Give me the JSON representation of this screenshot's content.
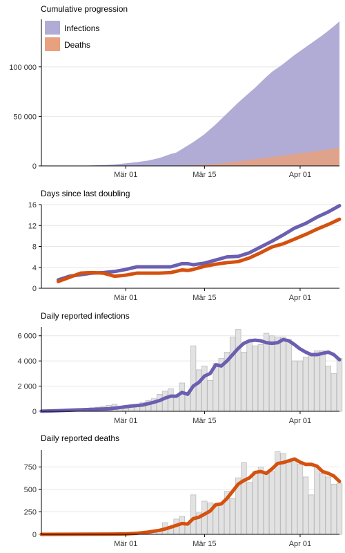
{
  "colors": {
    "infections": "#6a5fb0",
    "deaths": "#d4510f",
    "infections_fill": "#b0acd6",
    "deaths_fill": "#e8a07e",
    "bar_fill": "#e2e2e2",
    "bar_stroke": "#bdbdbd"
  },
  "x_ticks": [
    {
      "day": 22,
      "label": "Mär 01"
    },
    {
      "day": 36,
      "label": "Mär 15"
    },
    {
      "day": 53,
      "label": "Apr 01"
    }
  ],
  "x_range": [
    7,
    60
  ],
  "chart_data": [
    {
      "type": "area",
      "title": "Cumulative progression",
      "legend": [
        "Infections",
        "Deaths"
      ],
      "legend_position": "top-left",
      "ylim": [
        0,
        148000
      ],
      "yticks": [
        0,
        50000,
        100000
      ],
      "ytick_labels": [
        "0",
        "50 000",
        "100 000"
      ],
      "series": [
        {
          "name": "Infections",
          "x": [
            7,
            12,
            15,
            18,
            20,
            22,
            24,
            26,
            28,
            29,
            30,
            31,
            32,
            33,
            34,
            35,
            36,
            37,
            38,
            39,
            40,
            41,
            42,
            43,
            44,
            45,
            46,
            47,
            48,
            49,
            50,
            51,
            52,
            53,
            54,
            55,
            56,
            57,
            58,
            59,
            60
          ],
          "values": [
            0,
            50,
            300,
            800,
            1500,
            2600,
            3800,
            5400,
            8000,
            10000,
            12000,
            13500,
            17000,
            20500,
            24000,
            28000,
            32000,
            37000,
            42000,
            47500,
            53000,
            58500,
            64000,
            69000,
            74000,
            79000,
            84500,
            90000,
            95000,
            99000,
            103000,
            107500,
            112000,
            116000,
            120000,
            124000,
            128000,
            132000,
            136500,
            141000,
            146000
          ]
        },
        {
          "name": "Deaths",
          "x": [
            7,
            25,
            28,
            30,
            32,
            34,
            36,
            38,
            40,
            42,
            44,
            46,
            48,
            50,
            52,
            54,
            56,
            58,
            60
          ],
          "values": [
            0,
            0,
            100,
            200,
            400,
            700,
            1200,
            2000,
            3200,
            4500,
            6000,
            7500,
            9000,
            10500,
            12000,
            13500,
            15000,
            16700,
            18500
          ]
        }
      ]
    },
    {
      "type": "line",
      "title": "Days since last doubling",
      "ylim": [
        0,
        16
      ],
      "yticks": [
        0,
        4,
        8,
        12,
        16
      ],
      "series": [
        {
          "name": "Infections",
          "x": [
            10,
            12,
            14,
            16,
            18,
            20,
            22,
            24,
            26,
            28,
            30,
            32,
            33,
            34,
            36,
            38,
            40,
            42,
            44,
            46,
            48,
            50,
            52,
            54,
            56,
            58,
            60
          ],
          "values": [
            1.6,
            2.3,
            2.6,
            2.9,
            3.0,
            3.2,
            3.6,
            4.1,
            4.1,
            4.1,
            4.1,
            4.7,
            4.7,
            4.5,
            4.8,
            5.4,
            6.0,
            6.1,
            6.8,
            7.9,
            9.0,
            10.2,
            11.5,
            12.4,
            13.6,
            14.6,
            15.8
          ]
        },
        {
          "name": "Deaths",
          "x": [
            10,
            12,
            14,
            16,
            18,
            20,
            22,
            24,
            26,
            28,
            30,
            32,
            33,
            34,
            36,
            38,
            40,
            42,
            44,
            46,
            48,
            50,
            52,
            54,
            56,
            58,
            60
          ],
          "values": [
            1.3,
            2.1,
            2.9,
            3.0,
            2.9,
            2.3,
            2.5,
            2.9,
            2.9,
            2.9,
            3.0,
            3.5,
            3.4,
            3.6,
            4.2,
            4.6,
            4.9,
            5.1,
            5.8,
            6.8,
            7.9,
            8.5,
            9.4,
            10.3,
            11.3,
            12.2,
            13.2
          ]
        }
      ]
    },
    {
      "type": "bar",
      "title": "Daily reported infections",
      "ylim": [
        0,
        6700
      ],
      "yticks": [
        0,
        2000,
        4000,
        6000
      ],
      "ytick_labels": [
        "0",
        "2 000",
        "4 000",
        "6 000"
      ],
      "bars": {
        "x": [
          7,
          8,
          9,
          10,
          11,
          12,
          13,
          14,
          15,
          16,
          17,
          18,
          19,
          20,
          21,
          22,
          23,
          24,
          25,
          26,
          27,
          28,
          29,
          30,
          31,
          32,
          33,
          34,
          35,
          36,
          37,
          38,
          39,
          40,
          41,
          42,
          43,
          44,
          45,
          46,
          47,
          48,
          49,
          50,
          51,
          52,
          53,
          54,
          55,
          56,
          57,
          58,
          59,
          60
        ],
        "values": [
          20,
          40,
          60,
          80,
          100,
          130,
          160,
          200,
          250,
          280,
          330,
          400,
          470,
          560,
          300,
          350,
          450,
          520,
          700,
          840,
          1000,
          1350,
          1600,
          1800,
          1300,
          2250,
          1500,
          5200,
          3300,
          3600,
          2450,
          3800,
          4200,
          4700,
          5900,
          6500,
          4700,
          5500,
          5200,
          5300,
          6200,
          6000,
          5900,
          5900,
          5700,
          4000,
          4000,
          4300,
          4600,
          4800,
          4800,
          3600,
          3000,
          4200
        ]
      },
      "trend": {
        "name": "Infections",
        "x": [
          7,
          10,
          13,
          16,
          19,
          21,
          23,
          25,
          27,
          28,
          29,
          30,
          31,
          32,
          33,
          34,
          35,
          36,
          37,
          38,
          39,
          40,
          41,
          42,
          43,
          44,
          45,
          46,
          47,
          48,
          49,
          50,
          51,
          52,
          53,
          54,
          55,
          56,
          57,
          58,
          59,
          60
        ],
        "values": [
          10,
          50,
          100,
          150,
          200,
          300,
          420,
          500,
          720,
          850,
          1050,
          1200,
          1200,
          1500,
          1350,
          2000,
          2300,
          2800,
          3000,
          3700,
          3600,
          4000,
          4500,
          5000,
          5400,
          5600,
          5650,
          5600,
          5450,
          5400,
          5450,
          5700,
          5600,
          5300,
          4950,
          4700,
          4500,
          4500,
          4600,
          4700,
          4500,
          4100
        ]
      }
    },
    {
      "type": "bar",
      "title": "Daily reported deaths",
      "ylim": [
        0,
        940
      ],
      "yticks": [
        0,
        250,
        500,
        750
      ],
      "bars": {
        "x": [
          7,
          8,
          9,
          10,
          11,
          12,
          13,
          14,
          15,
          16,
          17,
          18,
          19,
          20,
          21,
          22,
          23,
          24,
          25,
          26,
          27,
          28,
          29,
          30,
          31,
          32,
          33,
          34,
          35,
          36,
          37,
          38,
          39,
          40,
          41,
          42,
          43,
          44,
          45,
          46,
          47,
          48,
          49,
          50,
          51,
          52,
          53,
          54,
          55,
          56,
          57,
          58,
          59,
          60
        ],
        "values": [
          2,
          2,
          2,
          2,
          3,
          3,
          3,
          4,
          4,
          5,
          5,
          5,
          6,
          8,
          10,
          12,
          15,
          18,
          25,
          30,
          40,
          45,
          130,
          90,
          170,
          200,
          130,
          440,
          240,
          370,
          350,
          340,
          330,
          480,
          400,
          630,
          800,
          580,
          700,
          750,
          700,
          700,
          920,
          900,
          800,
          840,
          780,
          640,
          440,
          750,
          680,
          640,
          560,
          570
        ]
      },
      "trend": {
        "name": "Deaths",
        "x": [
          7,
          12,
          16,
          20,
          22,
          24,
          26,
          27,
          28,
          29,
          30,
          31,
          32,
          33,
          34,
          35,
          36,
          37,
          38,
          39,
          40,
          41,
          42,
          43,
          44,
          45,
          46,
          47,
          48,
          49,
          50,
          51,
          52,
          53,
          54,
          55,
          56,
          57,
          58,
          59,
          60
        ],
        "values": [
          0,
          1,
          2,
          3,
          5,
          12,
          25,
          35,
          45,
          60,
          80,
          100,
          120,
          115,
          175,
          190,
          225,
          260,
          330,
          340,
          400,
          480,
          560,
          600,
          630,
          690,
          700,
          680,
          730,
          790,
          800,
          820,
          840,
          805,
          780,
          780,
          760,
          700,
          680,
          650,
          590
        ]
      }
    }
  ]
}
